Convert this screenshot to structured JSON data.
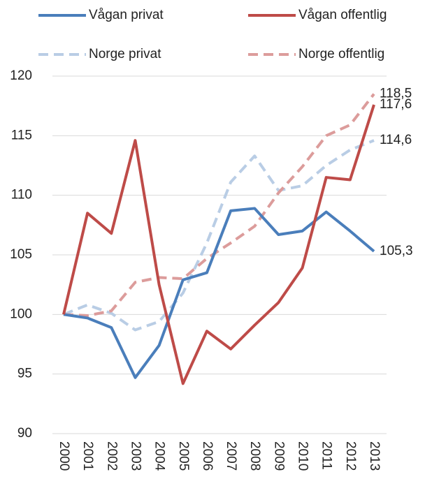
{
  "chart_data": {
    "type": "line",
    "categories": [
      "2000",
      "2001",
      "2002",
      "2003",
      "2004",
      "2005",
      "2006",
      "2007",
      "2008",
      "2009",
      "2010",
      "2011",
      "2012",
      "2013"
    ],
    "series": [
      {
        "name": "Vågan privat",
        "color": "#4a7ebb",
        "dash": false,
        "values": [
          100,
          99.7,
          98.9,
          94.7,
          97.4,
          102.9,
          103.5,
          108.7,
          108.9,
          106.7,
          107.0,
          108.6,
          107.0,
          105.3
        ],
        "value_labels": [
          null,
          null,
          null,
          null,
          null,
          null,
          null,
          null,
          null,
          null,
          null,
          null,
          null,
          "105,3"
        ]
      },
      {
        "name": "Vågan offentlig",
        "color": "#be4b48",
        "dash": false,
        "values": [
          100,
          108.5,
          106.8,
          114.6,
          102.5,
          94.2,
          98.6,
          97.1,
          99.1,
          101.0,
          103.9,
          111.5,
          111.3,
          117.6
        ],
        "value_labels": [
          null,
          null,
          null,
          null,
          null,
          null,
          null,
          null,
          null,
          null,
          null,
          null,
          null,
          "117,6"
        ]
      },
      {
        "name": "Norge privat",
        "color": "#b9cde5",
        "dash": true,
        "values": [
          100,
          100.8,
          100.1,
          98.7,
          99.4,
          101.8,
          106.0,
          111.1,
          113.3,
          110.4,
          110.8,
          112.5,
          113.8,
          114.6
        ],
        "value_labels": [
          null,
          null,
          null,
          null,
          null,
          null,
          null,
          null,
          null,
          null,
          null,
          null,
          null,
          "114,6"
        ]
      },
      {
        "name": "Norge offentlig",
        "color": "#dc9c9b",
        "dash": true,
        "values": [
          100,
          99.9,
          100.3,
          102.7,
          103.1,
          103.0,
          104.7,
          106.0,
          107.4,
          110.2,
          112.4,
          115.0,
          115.9,
          118.5
        ],
        "value_labels": [
          null,
          null,
          null,
          null,
          null,
          null,
          null,
          null,
          null,
          null,
          null,
          null,
          null,
          "118,5"
        ]
      }
    ],
    "ylim": [
      90,
      120
    ],
    "yticks": [
      90,
      95,
      100,
      105,
      110,
      115,
      120
    ],
    "grid": true,
    "legend": "top"
  }
}
